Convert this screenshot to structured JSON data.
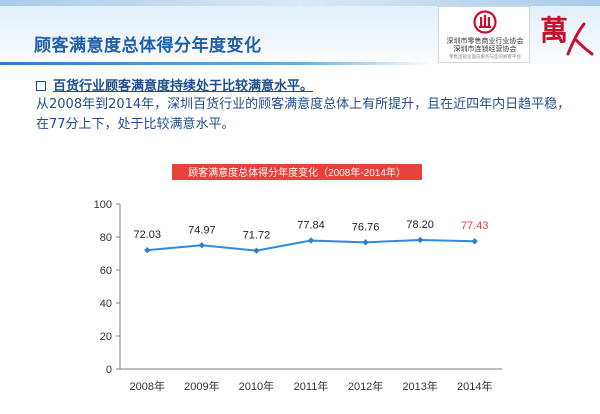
{
  "slide": {
    "title": "顾客满意度总体得分年度变化",
    "bullet_heading": "百货行业顾客满意度持续处于比较满意水平。",
    "body_text": "从2008年到2014年，深圳百货行业的顾客满意度总体上有所提升，且在近四年内日趋平稳，在77分上下，处于比较满意水平。"
  },
  "logos": {
    "association_line_1": "深圳市零售商业行业协会",
    "association_line_2": "深圳市连锁经营协会",
    "association_line_3": "零售连锁业面向服务与您的顾客平台",
    "brand_glyph": "萬人"
  },
  "colors": {
    "title_blue": "#1f5ea8",
    "text_blue": "#1f4e8c",
    "series_line": "#2f8be0",
    "series_marker": "#2e7fd0",
    "highlight_label": "#e8413a",
    "chart_title_bg": "#e8413a",
    "logo_red": "#c8102e"
  },
  "chart_data": {
    "type": "line",
    "title": "顾客满意度总体得分年度变化（2008年-2014年）",
    "categories": [
      "2008年",
      "2009年",
      "2010年",
      "2011年",
      "2012年",
      "2013年",
      "2014年"
    ],
    "series": [
      {
        "values": [
          72.03,
          74.97,
          71.72,
          77.84,
          76.76,
          78.2,
          77.43
        ],
        "labels": [
          "72.03",
          "74.97",
          "71.72",
          "77.84",
          "76.76",
          "78.20",
          "77.43"
        ]
      }
    ],
    "highlight_index": 6,
    "yticks": [
      "0",
      "20",
      "40",
      "60",
      "80",
      "100"
    ],
    "ylim": [
      0,
      100
    ],
    "grid": false,
    "legend": "none"
  }
}
